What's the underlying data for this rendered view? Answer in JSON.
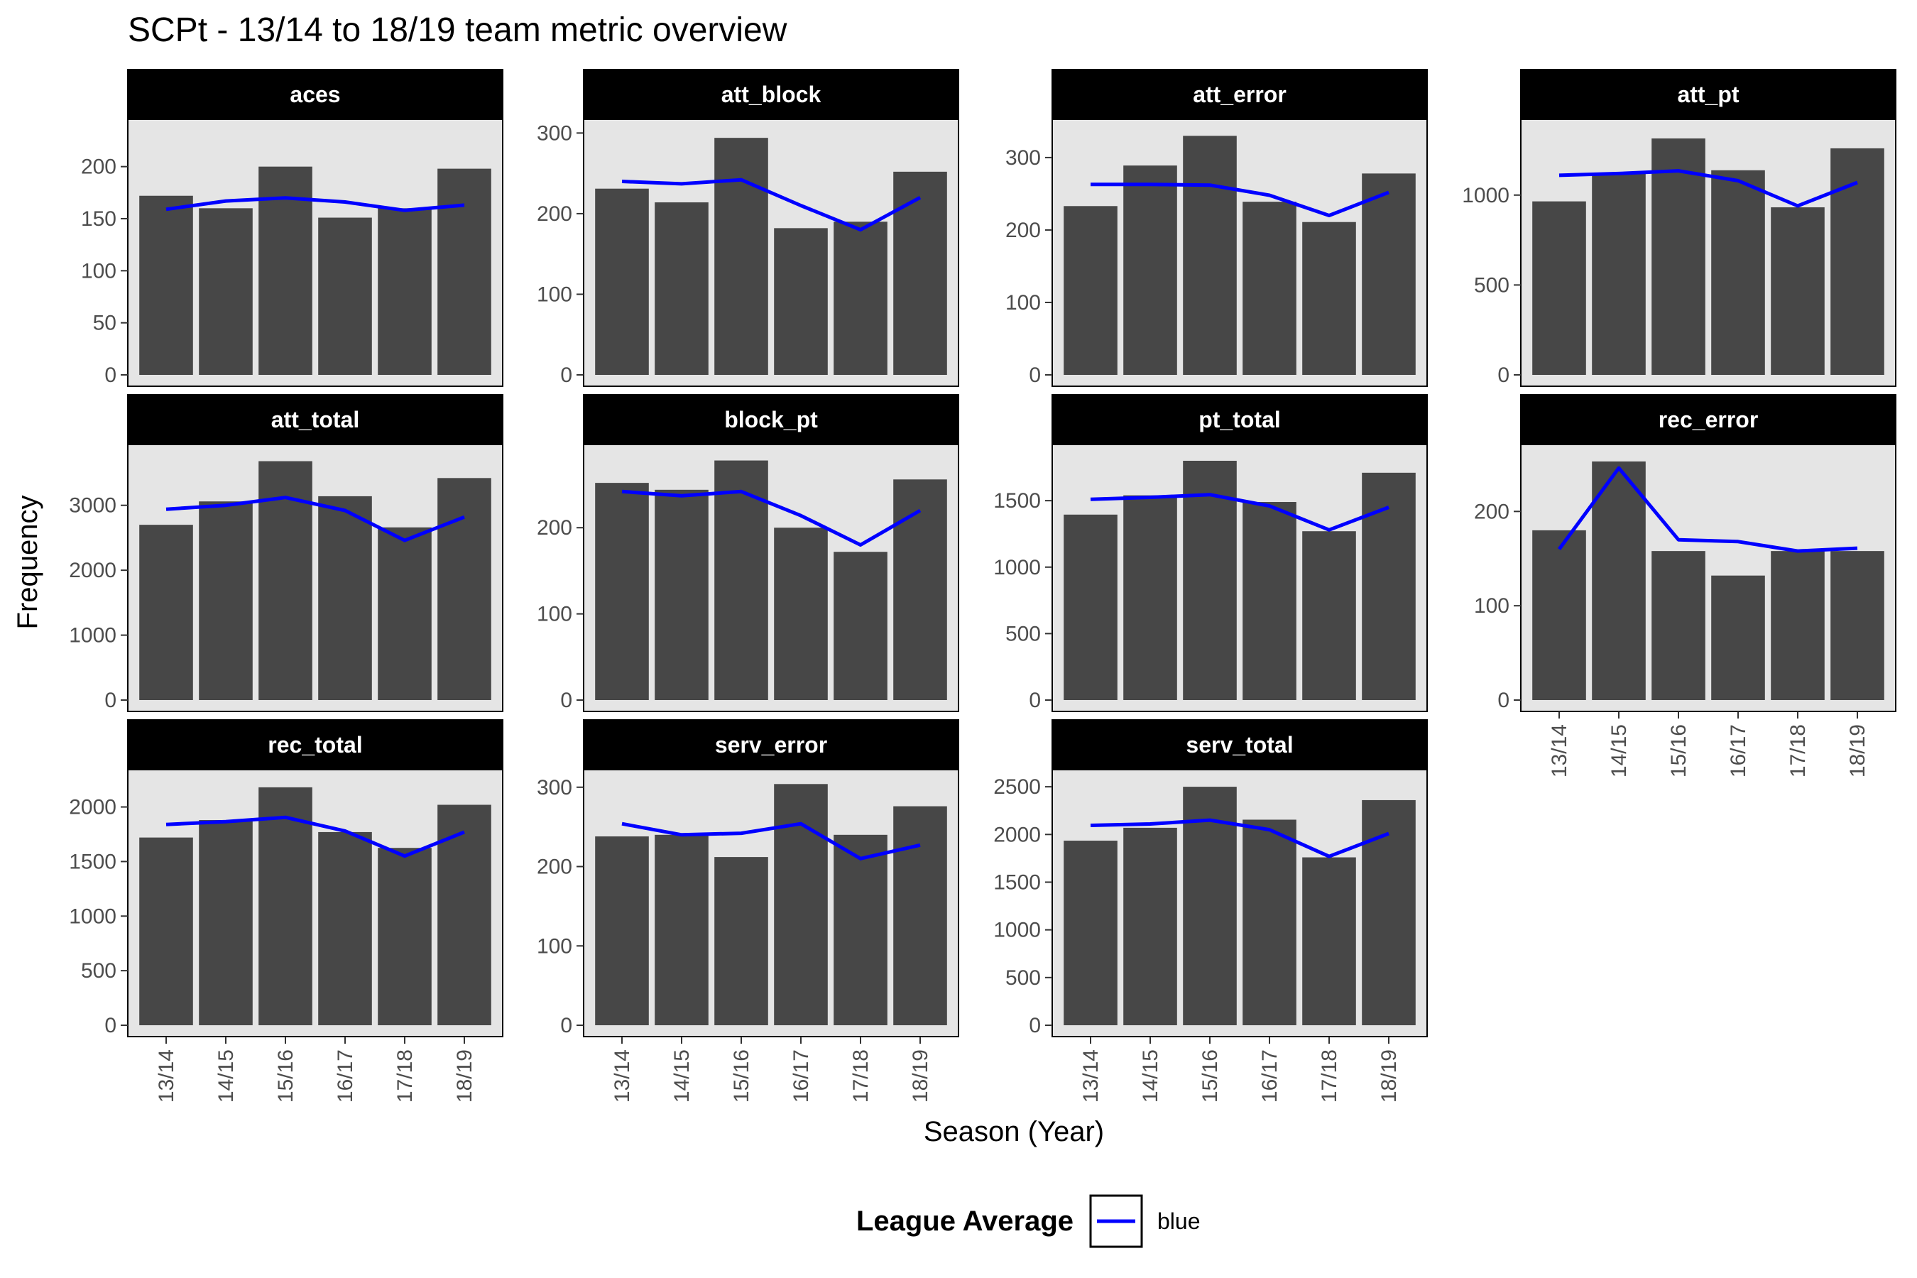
{
  "chart_data": {
    "type": "bar",
    "title": "SCPt - 13/14 to 18/19 team metric overview",
    "xlabel": "Season (Year)",
    "ylabel": "Frequency",
    "categories": [
      "13/14",
      "14/15",
      "15/16",
      "16/17",
      "17/18",
      "18/19"
    ],
    "legend": {
      "title": "League Average",
      "entries": [
        {
          "label": "blue",
          "color": "#0000ff"
        }
      ],
      "position": "bottom"
    },
    "colors": {
      "bar": "#474747",
      "panel": "#e5e5e5",
      "strip": "#000000",
      "line": "#0000ff"
    },
    "facets": [
      {
        "name": "aces",
        "ylim": [
          0,
          240
        ],
        "yticks": [
          0,
          50,
          100,
          150,
          200
        ],
        "values": [
          172,
          160,
          200,
          151,
          160,
          198
        ],
        "league_average": [
          159,
          167,
          170,
          166,
          158,
          163
        ]
      },
      {
        "name": "att_block",
        "ylim": [
          0,
          310
        ],
        "yticks": [
          0,
          100,
          200,
          300
        ],
        "values": [
          231,
          214,
          294,
          182,
          190,
          252
        ],
        "league_average": [
          240,
          237,
          242,
          210,
          180,
          220
        ]
      },
      {
        "name": "att_error",
        "ylim": [
          0,
          345
        ],
        "yticks": [
          0,
          100,
          200,
          300
        ],
        "values": [
          233,
          289,
          330,
          239,
          211,
          278
        ],
        "league_average": [
          263,
          263,
          262,
          248,
          220,
          252
        ]
      },
      {
        "name": "att_pt",
        "ylim": [
          0,
          1390
        ],
        "yticks": [
          0,
          500,
          1000
        ],
        "values": [
          965,
          1120,
          1315,
          1138,
          932,
          1260
        ],
        "league_average": [
          1110,
          1120,
          1135,
          1080,
          940,
          1070
        ]
      },
      {
        "name": "att_total",
        "ylim": [
          0,
          3850
        ],
        "yticks": [
          0,
          1000,
          2000,
          3000
        ],
        "values": [
          2700,
          3060,
          3680,
          3140,
          2660,
          3420
        ],
        "league_average": [
          2940,
          3000,
          3120,
          2920,
          2460,
          2820
        ]
      },
      {
        "name": "block_pt",
        "ylim": [
          0,
          290
        ],
        "yticks": [
          0,
          100,
          200
        ],
        "values": [
          252,
          244,
          278,
          200,
          172,
          256
        ],
        "league_average": [
          242,
          237,
          242,
          214,
          180,
          220
        ]
      },
      {
        "name": "pt_total",
        "ylim": [
          0,
          1880
        ],
        "yticks": [
          0,
          500,
          1000,
          1500
        ],
        "values": [
          1395,
          1540,
          1800,
          1490,
          1270,
          1710
        ],
        "league_average": [
          1510,
          1525,
          1545,
          1460,
          1280,
          1450
        ]
      },
      {
        "name": "rec_error",
        "ylim": [
          0,
          265
        ],
        "yticks": [
          0,
          100,
          200
        ],
        "values": [
          180,
          253,
          158,
          132,
          158,
          158
        ],
        "league_average": [
          160,
          246,
          170,
          168,
          158,
          161
        ]
      },
      {
        "name": "rec_total",
        "ylim": [
          0,
          2290
        ],
        "yticks": [
          0,
          500,
          1000,
          1500,
          2000
        ],
        "values": [
          1720,
          1880,
          2180,
          1770,
          1625,
          2020
        ],
        "league_average": [
          1840,
          1865,
          1905,
          1780,
          1550,
          1770
        ]
      },
      {
        "name": "serv_error",
        "ylim": [
          0,
          315
        ],
        "yticks": [
          0,
          100,
          200,
          300
        ],
        "values": [
          238,
          240,
          212,
          304,
          240,
          276
        ],
        "league_average": [
          254,
          240,
          242,
          254,
          210,
          227
        ]
      },
      {
        "name": "serv_total",
        "ylim": [
          0,
          2620
        ],
        "yticks": [
          0,
          500,
          1000,
          1500,
          2000,
          2500
        ],
        "values": [
          1935,
          2070,
          2500,
          2155,
          1760,
          2360
        ],
        "league_average": [
          2095,
          2110,
          2150,
          2050,
          1770,
          2010
        ]
      }
    ]
  }
}
